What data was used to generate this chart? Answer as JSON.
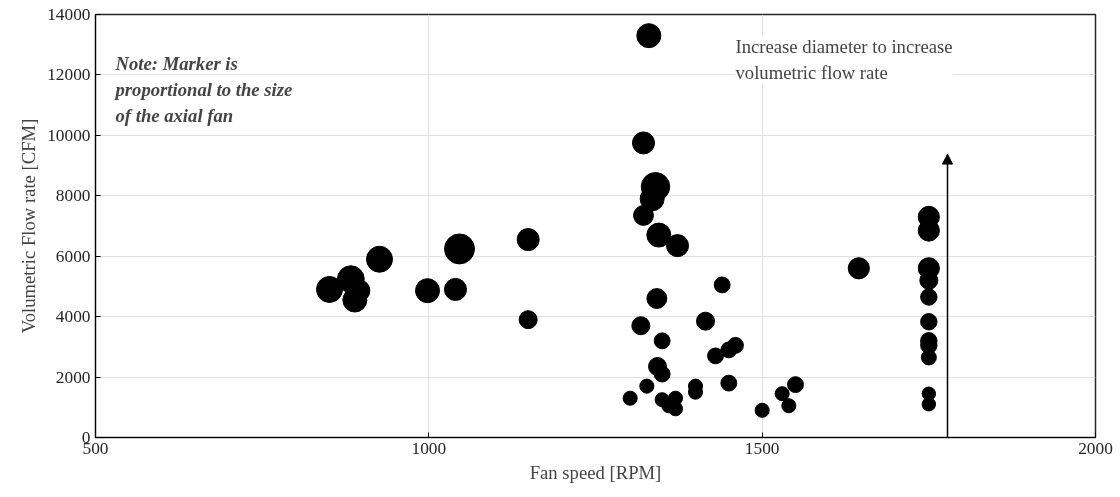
{
  "chart_data": {
    "type": "bubble",
    "xlabel": "Fan speed [RPM]",
    "ylabel": "Volumetric Flow rate [CFM]",
    "annotations": [
      "Note: Marker is\nproportional to the size\nof the axial fan",
      "Increase diameter to increase\nvolumetric flow rate"
    ],
    "xlim": [
      500,
      2000
    ],
    "ylim": [
      0,
      14000
    ],
    "xticks": [
      500,
      1000,
      1500,
      2000
    ],
    "yticks": [
      0,
      2000,
      4000,
      6000,
      8000,
      10000,
      12000,
      14000
    ],
    "grid": true,
    "marker": "circle",
    "series": [
      {
        "color": "#000000",
        "x": [
          851,
          883,
          895,
          889,
          926,
          998,
          1040,
          1046,
          1149,
          1149,
          1330,
          1322,
          1340,
          1335,
          1322,
          1345,
          1373,
          1342,
          1350,
          1318,
          1343,
          1350,
          1327,
          1302,
          1350,
          1360,
          1370,
          1370,
          1400,
          1400,
          1415,
          1430,
          1440,
          1450,
          1460,
          1450,
          1500,
          1530,
          1540,
          1550,
          1645,
          1750,
          1750,
          1750,
          1750,
          1750,
          1750,
          1750,
          1750,
          1750,
          1750,
          1750
        ],
        "values": [
          4900,
          5240,
          4860,
          4550,
          5900,
          4860,
          4900,
          6240,
          6550,
          3900,
          13300,
          9750,
          8300,
          7900,
          7350,
          6700,
          6350,
          4600,
          3200,
          3700,
          2350,
          2100,
          1700,
          1300,
          1250,
          1050,
          1300,
          950,
          1500,
          1700,
          3850,
          2700,
          5050,
          2900,
          3050,
          1800,
          900,
          1450,
          1050,
          1750,
          5600,
          7300,
          6850,
          5600,
          5200,
          4650,
          3830,
          3200,
          3050,
          2650,
          1450,
          1100
        ],
        "sizes": [
          0.75,
          0.8,
          0.54,
          0.64,
          0.75,
          0.64,
          0.54,
          1,
          0.54,
          0.36,
          0.64,
          0.54,
          0.9,
          0.64,
          0.44,
          0.64,
          0.54,
          0.44,
          0.28,
          0.36,
          0.36,
          0.28,
          0.22,
          0.22,
          0.22,
          0.22,
          0.22,
          0.22,
          0.22,
          0.22,
          0.36,
          0.28,
          0.28,
          0.28,
          0.28,
          0.28,
          0.22,
          0.22,
          0.22,
          0.28,
          0.5,
          0.5,
          0.5,
          0.5,
          0.36,
          0.3,
          0.3,
          0.3,
          0.3,
          0.25,
          0.2,
          0.2
        ]
      }
    ]
  }
}
